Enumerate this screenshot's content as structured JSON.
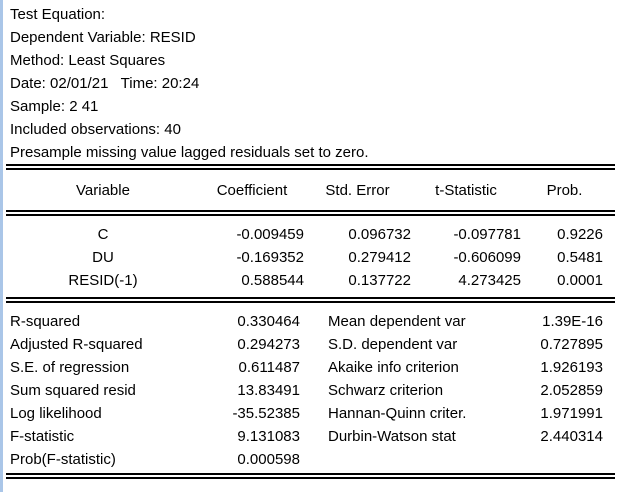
{
  "header": {
    "lines": [
      "Test Equation:",
      "Dependent Variable: RESID",
      "Method: Least Squares",
      "Date: 02/01/21   Time: 20:24",
      "Sample: 2 41",
      "Included observations: 40",
      "Presample missing value lagged residuals set to zero."
    ]
  },
  "coefficient_table": {
    "columns": [
      "Variable",
      "Coefficient",
      "Std. Error",
      "t-Statistic",
      "Prob."
    ],
    "rows": [
      {
        "variable": "C",
        "coefficient": "-0.009459",
        "std_error": "0.096732",
        "t_statistic": "-0.097781",
        "prob": "0.9226"
      },
      {
        "variable": "DU",
        "coefficient": "-0.169352",
        "std_error": "0.279412",
        "t_statistic": "-0.606099",
        "prob": "0.5481"
      },
      {
        "variable": "RESID(-1)",
        "coefficient": "0.588544",
        "std_error": "0.137722",
        "t_statistic": "4.273425",
        "prob": "0.0001"
      }
    ]
  },
  "summary_stats": {
    "rows": [
      {
        "left_label": "R-squared",
        "left_value": "0.330464",
        "right_label": "Mean dependent var",
        "right_value": "1.39E-16"
      },
      {
        "left_label": "Adjusted R-squared",
        "left_value": "0.294273",
        "right_label": "S.D. dependent var",
        "right_value": "0.727895"
      },
      {
        "left_label": "S.E. of regression",
        "left_value": "0.611487",
        "right_label": "Akaike info criterion",
        "right_value": "1.926193"
      },
      {
        "left_label": "Sum squared resid",
        "left_value": "13.83491",
        "right_label": "Schwarz criterion",
        "right_value": "2.052859"
      },
      {
        "left_label": "Log likelihood",
        "left_value": "-35.52385",
        "right_label": "Hannan-Quinn criter.",
        "right_value": "1.971991"
      },
      {
        "left_label": "F-statistic",
        "left_value": "9.131083",
        "right_label": "Durbin-Watson stat",
        "right_value": "2.440314"
      },
      {
        "left_label": "Prob(F-statistic)",
        "left_value": "0.000598",
        "right_label": "",
        "right_value": ""
      }
    ]
  },
  "colors": {
    "background": "#ffffff",
    "text": "#000000",
    "left_edge_accent": "#aac6e8",
    "rule": "#000000"
  }
}
